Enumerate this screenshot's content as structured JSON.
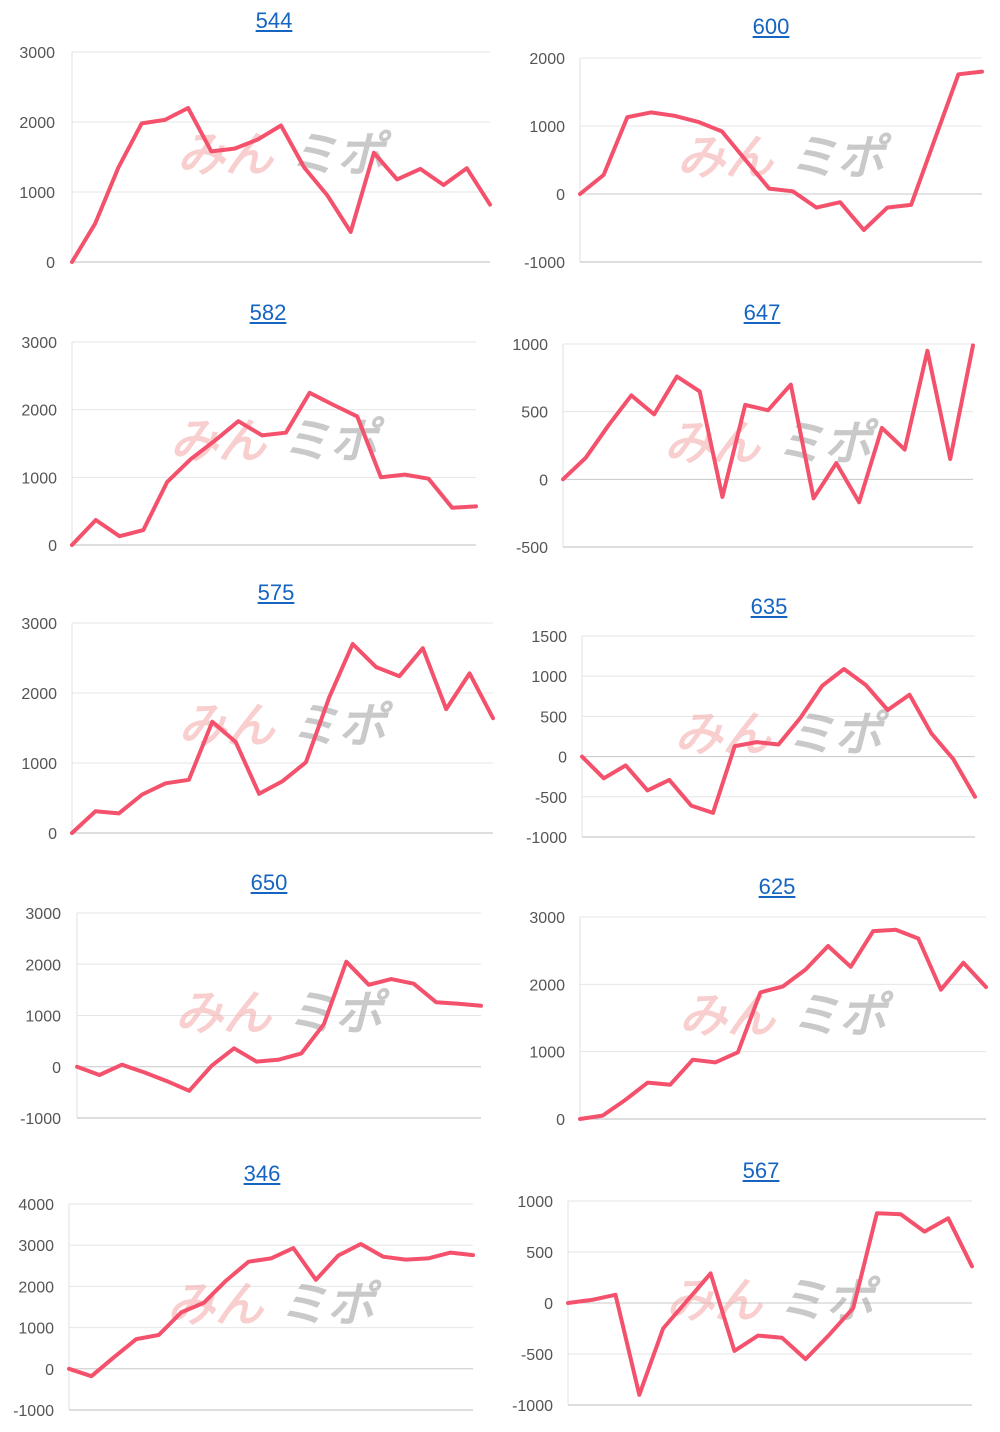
{
  "watermark": {
    "left": "みん",
    "right": "ミポ",
    "left_color": "#f4a7a7",
    "right_color": "#9e9e9e"
  },
  "line_color": "#f4516c",
  "chart_data": [
    {
      "type": "line",
      "title": "544",
      "ylim": [
        0,
        3000
      ],
      "yticks": [
        "3000",
        "2000",
        "1000",
        "0"
      ],
      "values": [
        0,
        550,
        1350,
        1980,
        2030,
        2200,
        1580,
        1620,
        1750,
        1950,
        1350,
        950,
        430,
        1560,
        1180,
        1330,
        1100,
        1340,
        820
      ]
    },
    {
      "type": "line",
      "title": "600",
      "ylim": [
        -1000,
        2000
      ],
      "yticks": [
        "2000",
        "1000",
        "0",
        "-1000"
      ],
      "values": [
        0,
        280,
        1130,
        1200,
        1150,
        1060,
        920,
        500,
        80,
        40,
        -200,
        -120,
        -530,
        -200,
        -160,
        800,
        1760,
        1800
      ]
    },
    {
      "type": "line",
      "title": "582",
      "ylim": [
        0,
        3000
      ],
      "yticks": [
        "3000",
        "2000",
        "1000",
        "0"
      ],
      "values": [
        0,
        370,
        130,
        220,
        930,
        1270,
        1540,
        1830,
        1620,
        1660,
        2250,
        2070,
        1900,
        1000,
        1040,
        980,
        550,
        570
      ]
    },
    {
      "type": "line",
      "title": "647",
      "ylim": [
        -500,
        1000
      ],
      "yticks": [
        "1000",
        "500",
        "0",
        "-500"
      ],
      "values": [
        0,
        160,
        400,
        620,
        480,
        760,
        650,
        -130,
        550,
        510,
        700,
        -140,
        120,
        -170,
        380,
        220,
        950,
        150,
        990
      ]
    },
    {
      "type": "line",
      "title": "575",
      "ylim": [
        0,
        3000
      ],
      "yticks": [
        "3000",
        "2000",
        "1000",
        "0"
      ],
      "values": [
        0,
        310,
        280,
        550,
        710,
        760,
        1590,
        1300,
        560,
        740,
        1010,
        1940,
        2700,
        2370,
        2240,
        2640,
        1770,
        2280,
        1640
      ]
    },
    {
      "type": "line",
      "title": "635",
      "ylim": [
        -1000,
        1500
      ],
      "yticks": [
        "1500",
        "1000",
        "500",
        "0",
        "-500",
        "-1000"
      ],
      "values": [
        0,
        -270,
        -110,
        -420,
        -290,
        -610,
        -700,
        130,
        180,
        150,
        480,
        880,
        1090,
        890,
        580,
        770,
        290,
        -30,
        -500
      ]
    },
    {
      "type": "line",
      "title": "650",
      "ylim": [
        -1000,
        3000
      ],
      "yticks": [
        "3000",
        "2000",
        "1000",
        "0",
        "-1000"
      ],
      "values": [
        0,
        -160,
        40,
        -110,
        -280,
        -470,
        20,
        360,
        100,
        140,
        260,
        830,
        2050,
        1600,
        1710,
        1620,
        1260,
        1230,
        1190
      ]
    },
    {
      "type": "line",
      "title": "625",
      "ylim": [
        0,
        3000
      ],
      "yticks": [
        "3000",
        "2000",
        "1000",
        "0"
      ],
      "values": [
        0,
        50,
        280,
        540,
        510,
        880,
        840,
        990,
        1880,
        1970,
        2220,
        2570,
        2260,
        2790,
        2810,
        2680,
        1920,
        2320,
        1960
      ]
    },
    {
      "type": "line",
      "title": "346",
      "ylim": [
        -1000,
        4000
      ],
      "yticks": [
        "4000",
        "3000",
        "2000",
        "1000",
        "0",
        "-1000"
      ],
      "values": [
        0,
        -180,
        280,
        720,
        820,
        1370,
        1600,
        2140,
        2600,
        2680,
        2930,
        2160,
        2750,
        3030,
        2720,
        2650,
        2680,
        2820,
        2760
      ]
    },
    {
      "type": "line",
      "title": "567",
      "ylim": [
        -1000,
        1000
      ],
      "yticks": [
        "1000",
        "500",
        "0",
        "-500",
        "-1000"
      ],
      "values": [
        0,
        30,
        80,
        -900,
        -250,
        20,
        290,
        -470,
        -320,
        -340,
        -550,
        -310,
        -50,
        880,
        870,
        700,
        830,
        360
      ]
    }
  ]
}
